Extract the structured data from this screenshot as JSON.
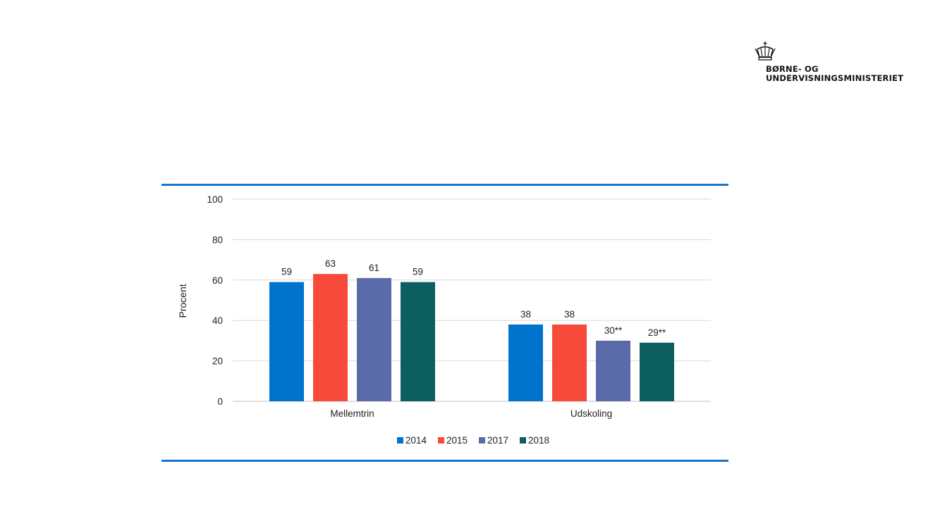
{
  "logo": {
    "line1": "BØRNE- OG",
    "line2": "UNDERVISNINGSMINISTERIET",
    "icon": "crown-icon"
  },
  "chart_data": {
    "type": "bar",
    "categories": [
      "Mellemtrin",
      "Udskoling"
    ],
    "series": [
      {
        "name": "2014",
        "color": "#0074cc",
        "values": [
          59,
          38
        ],
        "labels": [
          "59",
          "38"
        ]
      },
      {
        "name": "2015",
        "color": "#f74a3b",
        "values": [
          63,
          38
        ],
        "labels": [
          "63",
          "38"
        ]
      },
      {
        "name": "2017",
        "color": "#5b6aa8",
        "values": [
          61,
          30
        ],
        "labels": [
          "61",
          "30**"
        ]
      },
      {
        "name": "2018",
        "color": "#0d5e5e",
        "values": [
          59,
          29
        ],
        "labels": [
          "59",
          "29**"
        ]
      }
    ],
    "ylabel": "Procent",
    "ylim": [
      0,
      100
    ],
    "yticks": [
      "0",
      "20",
      "40",
      "60",
      "80",
      "100"
    ],
    "grid": true,
    "legend": "bottom"
  }
}
